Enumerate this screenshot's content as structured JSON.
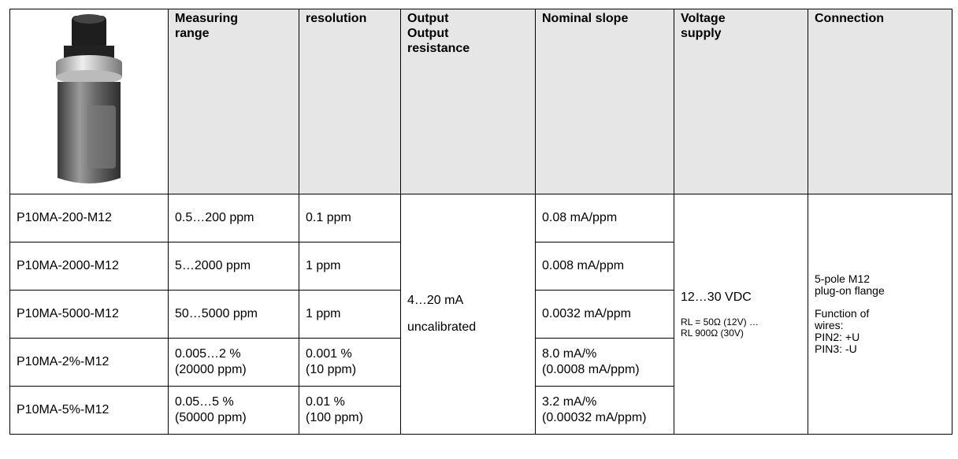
{
  "table": {
    "headers": [
      [
        "Measuring",
        "range"
      ],
      [
        "resolution"
      ],
      [
        "Output",
        "Output",
        "resistance"
      ],
      [
        "Nominal slope"
      ],
      [
        "Voltage",
        "supply"
      ],
      [
        "Connection"
      ]
    ],
    "rows": [
      {
        "model": "P10MA-200-M12",
        "range": [
          "0.5…200 ppm"
        ],
        "resolution": [
          "0.1 ppm"
        ],
        "slope": [
          "0.08 mA/ppm"
        ]
      },
      {
        "model": "P10MA-2000-M12",
        "range": [
          "5…2000 ppm"
        ],
        "resolution": [
          "1 ppm"
        ],
        "slope": [
          "0.008 mA/ppm"
        ]
      },
      {
        "model": "P10MA-5000-M12",
        "range": [
          "50…5000 ppm"
        ],
        "resolution": [
          "1 ppm"
        ],
        "slope": [
          "0.0032 mA/ppm"
        ]
      },
      {
        "model": "P10MA-2%-M12",
        "range": [
          "0.005…2 %",
          "(20000 ppm)"
        ],
        "resolution": [
          "0.001 %",
          "(10 ppm)"
        ],
        "slope": [
          "8.0 mA/%",
          "(0.0008 mA/ppm)"
        ]
      },
      {
        "model": "P10MA-5%-M12",
        "range": [
          "0.05…5 %",
          "(50000 ppm)"
        ],
        "resolution": [
          "0.01 %",
          "(100 ppm)"
        ],
        "slope": [
          "3.2 mA/%",
          "(0.00032 mA/ppm)"
        ]
      }
    ],
    "output": [
      "4…20 mA",
      "uncalibrated"
    ],
    "voltage": {
      "main": "12…30 VDC",
      "notes": [
        "RL = 50Ω (12V) …",
        "RL 900Ω (30V)"
      ]
    },
    "connection": {
      "type": [
        "5-pole M12",
        "plug-on flange"
      ],
      "wires": [
        "Function of",
        "wires:",
        "PIN2: +U",
        "PIN3: -U"
      ]
    }
  }
}
